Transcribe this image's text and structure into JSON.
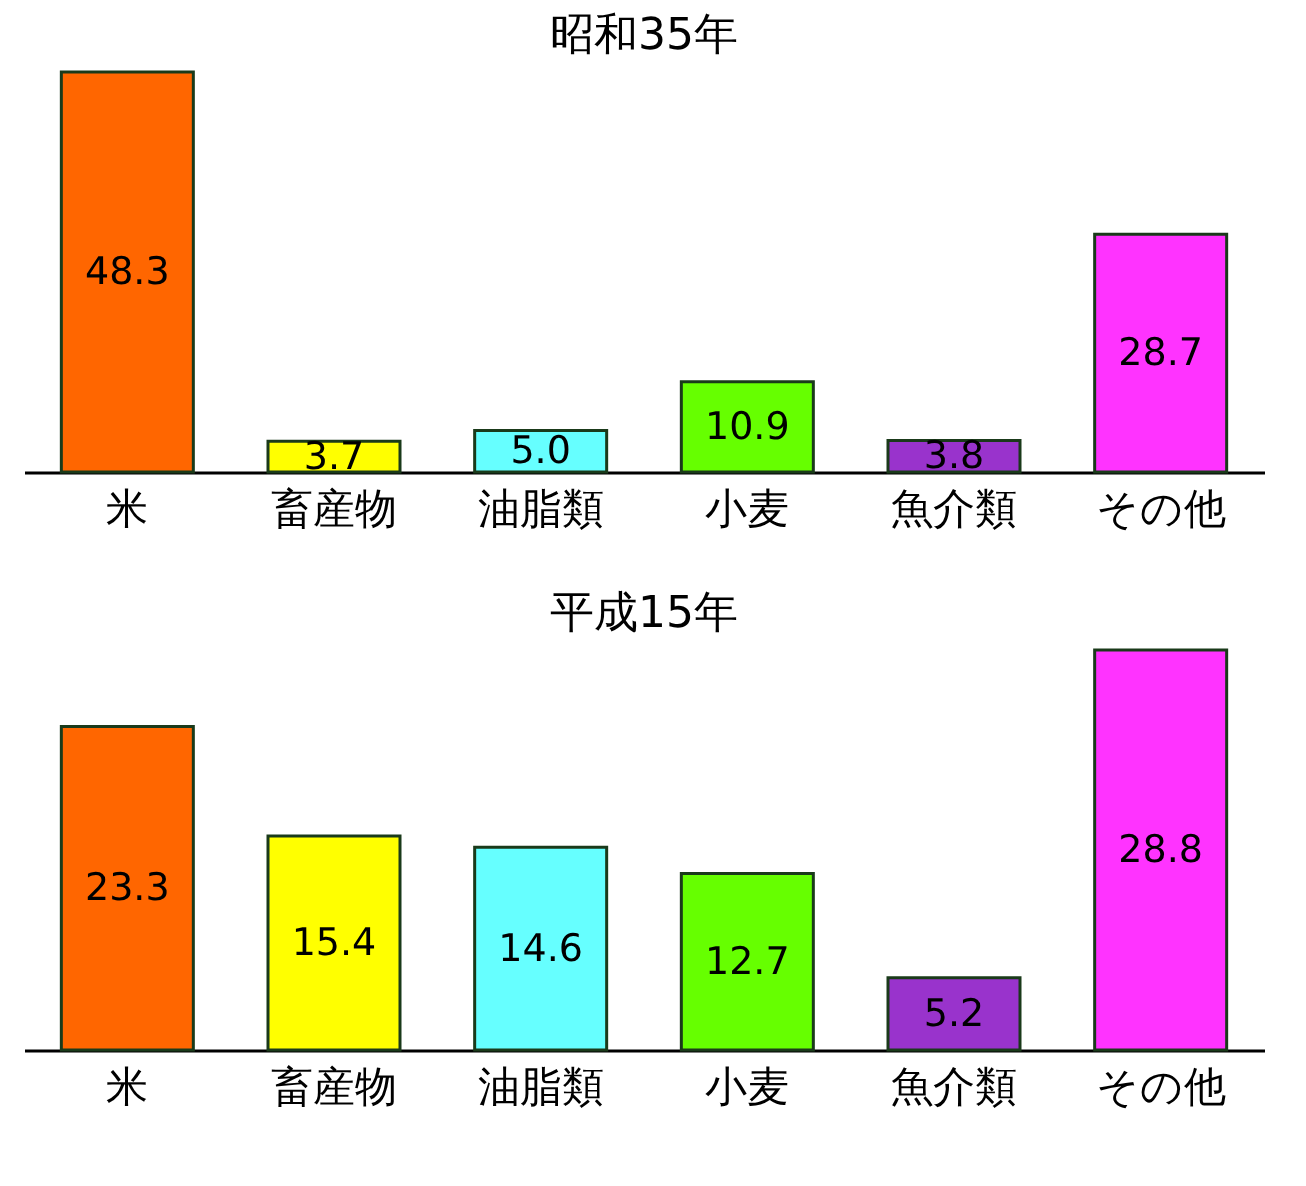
{
  "chart_data": [
    {
      "type": "bar",
      "title": "昭和35年",
      "categories": [
        "米",
        "畜産物",
        "油脂類",
        "小麦",
        "魚介類",
        "その他"
      ],
      "values": [
        48.3,
        3.7,
        5.0,
        10.9,
        3.8,
        28.7
      ],
      "colors": [
        "#ff6600",
        "#ffff00",
        "#66ffff",
        "#66ff00",
        "#9933cc",
        "#ff33ff"
      ],
      "data_labels": true,
      "value_labels": [
        "48.3",
        "3.7",
        "5.0",
        "10.9",
        "3.8",
        "28.7"
      ]
    },
    {
      "type": "bar",
      "title": "平成15年",
      "categories": [
        "米",
        "畜産物",
        "油脂類",
        "小麦",
        "魚介類",
        "その他"
      ],
      "values": [
        23.3,
        15.4,
        14.6,
        12.7,
        5.2,
        28.8
      ],
      "colors": [
        "#ff6600",
        "#ffff00",
        "#66ffff",
        "#66ff00",
        "#9933cc",
        "#ff33ff"
      ],
      "data_labels": true,
      "value_labels": [
        "23.3",
        "15.4",
        "14.6",
        "12.7",
        "5.2",
        "28.8"
      ]
    }
  ]
}
